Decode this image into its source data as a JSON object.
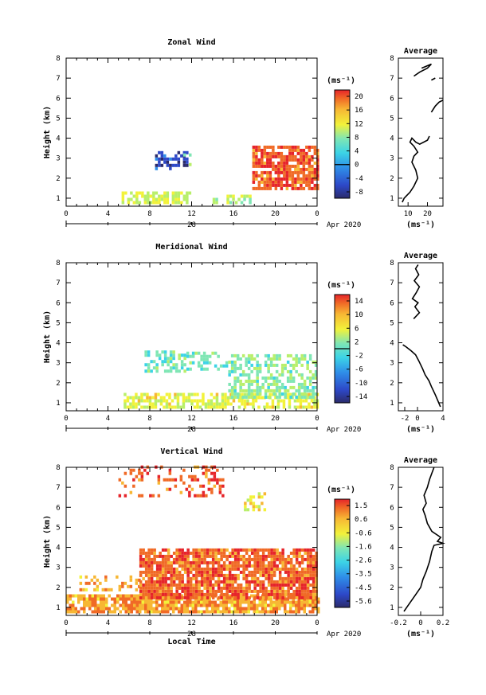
{
  "figure": {
    "date_label": "Apr 2020",
    "day_label": "28",
    "xlabel_bottom": "Local Time",
    "ylabel": "Height (km)",
    "unit_label": "(ms⁻¹)",
    "average_title": "Average",
    "average_xlabel": "(ms⁻¹)"
  },
  "chart_data": [
    {
      "type": "heatmap",
      "title": "Zonal Wind",
      "xlabel": "",
      "ylabel": "Height (km)",
      "xlim": [
        0,
        24
      ],
      "ylim": [
        0.6,
        8
      ],
      "xticks": [
        "0",
        "4",
        "8",
        "12",
        "16",
        "20",
        "0"
      ],
      "yticks": [
        "1",
        "2",
        "3",
        "4",
        "5",
        "6",
        "7",
        "8"
      ],
      "colorbar": {
        "label": "(ms⁻¹)",
        "range": [
          -10,
          22
        ],
        "ticks": [
          "20",
          "16",
          "12",
          "8",
          "4",
          "0",
          "-4",
          "-8"
        ],
        "contour_at": 0
      },
      "patches": [
        {
          "t0": 5.3,
          "t1": 11.8,
          "h0": 0.7,
          "h1": 1.2,
          "value": 9,
          "density": 0.7
        },
        {
          "t0": 8.5,
          "t1": 11.5,
          "h0": 2.4,
          "h1": 3.3,
          "value": -6,
          "density": 0.55
        },
        {
          "t0": 11.2,
          "t1": 12.8,
          "h0": 2.6,
          "h1": 3.1,
          "value": 6,
          "density": 0.4
        },
        {
          "t0": 14.0,
          "t1": 17.5,
          "h0": 0.7,
          "h1": 1.1,
          "value": 8,
          "density": 0.5
        },
        {
          "t0": 17.8,
          "t1": 24.0,
          "h0": 1.4,
          "h1": 3.6,
          "value": 18,
          "density": 0.8
        }
      ],
      "average": {
        "xlim": [
          5,
          28
        ],
        "xticks": [
          "10",
          "20"
        ],
        "xlabel": "(ms⁻¹)",
        "title": "Average",
        "segments": [
          {
            "x": [
              7,
              8,
              11,
              13,
              15,
              14,
              12,
              13,
              15,
              13,
              11,
              12,
              14,
              16,
              20,
              21
            ],
            "y": [
              0.8,
              1.0,
              1.3,
              1.6,
              2.0,
              2.4,
              2.8,
              3.1,
              3.3,
              3.6,
              3.8,
              4.0,
              3.8,
              3.7,
              3.9,
              4.1
            ]
          },
          {
            "x": [
              22,
              24,
              26,
              28
            ],
            "y": [
              5.3,
              5.6,
              5.8,
              5.9
            ]
          },
          {
            "x": [
              13,
              16,
              20,
              22,
              17
            ],
            "y": [
              7.1,
              7.3,
              7.5,
              7.7,
              7.5
            ]
          },
          {
            "x": [
              22,
              24
            ],
            "y": [
              6.9,
              7.0
            ]
          }
        ]
      }
    },
    {
      "type": "heatmap",
      "title": "Meridional Wind",
      "xlabel": "",
      "ylabel": "Height (km)",
      "xlim": [
        0,
        24
      ],
      "ylim": [
        0.6,
        8
      ],
      "xticks": [
        "0",
        "4",
        "8",
        "12",
        "16",
        "20",
        "0"
      ],
      "yticks": [
        "1",
        "2",
        "3",
        "4",
        "5",
        "6",
        "7",
        "8"
      ],
      "colorbar": {
        "label": "(ms⁻¹)",
        "range": [
          -15,
          17
        ],
        "ticks": [
          "14",
          "10",
          "6",
          "2",
          "-2",
          "-6",
          "-10",
          "-14"
        ],
        "contour_at": 0
      },
      "patches": [
        {
          "t0": 5.5,
          "t1": 24.0,
          "h0": 0.7,
          "h1": 1.4,
          "value": 5,
          "density": 0.65
        },
        {
          "t0": 7.5,
          "t1": 11.5,
          "h0": 2.5,
          "h1": 3.6,
          "value": -1,
          "density": 0.55
        },
        {
          "t0": 11.5,
          "t1": 15.5,
          "h0": 2.6,
          "h1": 3.4,
          "value": -1,
          "density": 0.5
        },
        {
          "t0": 15.5,
          "t1": 24.0,
          "h0": 1.2,
          "h1": 3.4,
          "value": 0,
          "density": 0.55
        }
      ],
      "average": {
        "xlim": [
          -3,
          4
        ],
        "xticks": [
          "-2",
          "0",
          "4"
        ],
        "xlabel": "(ms⁻¹)",
        "title": "Average",
        "segments": [
          {
            "x": [
              3.6,
              3.2,
              2.8,
              2.2,
              1.8,
              1.2,
              0.8,
              0.2,
              -0.3,
              -1.0,
              -1.8,
              -2.3
            ],
            "y": [
              0.8,
              1.1,
              1.4,
              1.8,
              2.1,
              2.4,
              2.7,
              3.1,
              3.4,
              3.6,
              3.8,
              3.9
            ]
          },
          {
            "x": [
              -0.6,
              0.3,
              -0.4,
              0.1,
              -0.8,
              -0.2,
              0.3,
              -0.5,
              0.2,
              -0.3,
              0.1
            ],
            "y": [
              5.2,
              5.5,
              5.8,
              6.0,
              6.2,
              6.5,
              6.8,
              7.1,
              7.4,
              7.7,
              7.9
            ]
          }
        ]
      }
    },
    {
      "type": "heatmap",
      "title": "Vertical Wind",
      "xlabel": "Local Time",
      "ylabel": "Height (km)",
      "xlim": [
        0,
        24
      ],
      "ylim": [
        0.6,
        8
      ],
      "xticks": [
        "0",
        "4",
        "8",
        "12",
        "16",
        "20",
        "0"
      ],
      "yticks": [
        "1",
        "2",
        "3",
        "4",
        "5",
        "6",
        "7",
        "8"
      ],
      "colorbar": {
        "label": "(ms⁻¹)",
        "range": [
          -6,
          2
        ],
        "ticks": [
          "1.5",
          "0.6",
          "-0.6",
          "-1.6",
          "-2.6",
          "-3.5",
          "-4.5",
          "-5.6"
        ],
        "contour_at": null
      },
      "patches": [
        {
          "t0": 0.0,
          "t1": 24.0,
          "h0": 0.7,
          "h1": 1.5,
          "value": 0.2,
          "density": 0.85
        },
        {
          "t0": 1.0,
          "t1": 7.0,
          "h0": 1.8,
          "h1": 2.5,
          "value": 0.0,
          "density": 0.35
        },
        {
          "t0": 7.0,
          "t1": 24.0,
          "h0": 1.4,
          "h1": 3.8,
          "value": 0.9,
          "density": 0.85
        },
        {
          "t0": 5.0,
          "t1": 15.0,
          "h0": 6.5,
          "h1": 8.0,
          "value": 0.9,
          "density": 0.25
        },
        {
          "t0": 17.0,
          "t1": 19.0,
          "h0": 5.8,
          "h1": 6.6,
          "value": -0.8,
          "density": 0.3
        }
      ],
      "average": {
        "xlim": [
          -0.2,
          0.2
        ],
        "xticks": [
          "-0.2",
          "0",
          "0.2"
        ],
        "xlabel": "(ms⁻¹)",
        "title": "Average",
        "segments": [
          {
            "x": [
              -0.15,
              -0.1,
              -0.05,
              0.0,
              0.02,
              0.05,
              0.08,
              0.1,
              0.12,
              0.2,
              0.15,
              0.18,
              0.1,
              0.06,
              0.04,
              0.02,
              0.05,
              0.03,
              0.06,
              0.08,
              0.1,
              0.12
            ],
            "y": [
              0.8,
              1.2,
              1.6,
              2.0,
              2.4,
              2.8,
              3.3,
              3.8,
              4.1,
              4.2,
              4.3,
              4.5,
              4.8,
              5.2,
              5.6,
              5.9,
              6.2,
              6.6,
              7.0,
              7.4,
              7.7,
              8.0
            ]
          }
        ]
      }
    }
  ]
}
